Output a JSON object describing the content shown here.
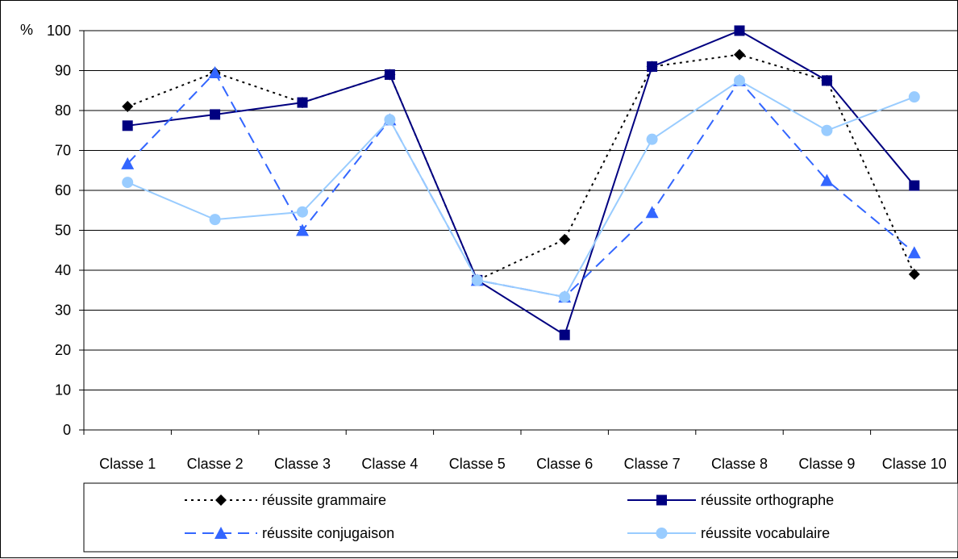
{
  "chart_data": {
    "type": "line",
    "ylabel": "%",
    "ylim": [
      0,
      100
    ],
    "yticks": [
      "0",
      "10",
      "20",
      "30",
      "40",
      "50",
      "60",
      "70",
      "80",
      "90",
      "100"
    ],
    "categories": [
      "Classe 1",
      "Classe 2",
      "Classe 3",
      "Classe 4",
      "Classe 5",
      "Classe 6",
      "Classe 7",
      "Classe 8",
      "Classe 9",
      "Classe 10"
    ],
    "grid": true,
    "legend_position": "bottom",
    "series": [
      {
        "name": "réussite grammaire",
        "values": [
          81,
          89.5,
          82,
          89,
          37.5,
          47.7,
          91,
          94,
          87.5,
          39
        ],
        "color": "#000000",
        "marker": "diamond",
        "dash": "dotted"
      },
      {
        "name": "réussite orthographe",
        "values": [
          76.2,
          79,
          82,
          89,
          37.5,
          23.8,
          91,
          100,
          87.5,
          61.2
        ],
        "color": "#000080",
        "marker": "square",
        "dash": "solid"
      },
      {
        "name": "réussite conjugaison",
        "values": [
          66.7,
          89.5,
          50,
          77.7,
          37.5,
          33.3,
          54.5,
          87.5,
          62.5,
          44.4
        ],
        "color": "#3366FF",
        "marker": "triangle",
        "dash": "dashed"
      },
      {
        "name": "réussite vocabulaire",
        "values": [
          62,
          52.7,
          54.6,
          77.7,
          37.5,
          33.3,
          72.8,
          87.5,
          75,
          83.4
        ],
        "color": "#99CCFF",
        "marker": "circle",
        "dash": "solid"
      }
    ]
  }
}
